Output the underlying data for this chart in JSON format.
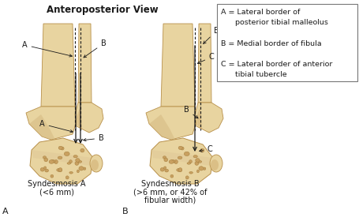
{
  "title": "Anteroposterior View",
  "title_fontsize": 8.5,
  "title_fontweight": "bold",
  "bone_color": "#e8d4a0",
  "bone_edge_color": "#b8904a",
  "bone_shadow": "#c8a870",
  "line_color": "#1a1a1a",
  "text_color": "#1a1a1a",
  "fontsize": 7.0,
  "legend_fontsize": 6.8,
  "caption_left_line1": "Syndesmosis A",
  "caption_left_line2": "(<6 mm)",
  "caption_right_line1": "Syndesmosis B",
  "caption_right_line2": "(>6 mm, or 42% of",
  "caption_right_line3": "fibular width)",
  "sub_label_left": "A",
  "sub_label_right": "B",
  "legend_text": "A = Lateral border of\n      posterior tibial malleolus\n\nB = Medial border of fibula\n\nC = Lateral border of anterior\n      tibial tubercle"
}
